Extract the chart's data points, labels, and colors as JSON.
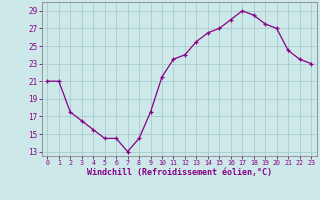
{
  "x": [
    0,
    1,
    2,
    3,
    4,
    5,
    6,
    7,
    8,
    9,
    10,
    11,
    12,
    13,
    14,
    15,
    16,
    17,
    18,
    19,
    20,
    21,
    22,
    23
  ],
  "y": [
    21,
    21,
    17.5,
    16.5,
    15.5,
    14.5,
    14.5,
    13,
    14.5,
    17.5,
    21.5,
    23.5,
    24,
    25.5,
    26.5,
    27,
    28,
    29,
    28.5,
    27.5,
    27,
    24.5,
    23.5,
    23
  ],
  "line_color": "#880088",
  "marker": "+",
  "bg_color": "#cce8e8",
  "grid_color": "#aacccc",
  "tick_label_color": "#880088",
  "xlabel": "Windchill (Refroidissement éolien,°C)",
  "xlabel_color": "#880088",
  "yticks": [
    13,
    15,
    17,
    19,
    21,
    23,
    25,
    27,
    29
  ],
  "xticks": [
    0,
    1,
    2,
    3,
    4,
    5,
    6,
    7,
    8,
    9,
    10,
    11,
    12,
    13,
    14,
    15,
    16,
    17,
    18,
    19,
    20,
    21,
    22,
    23
  ],
  "ylim": [
    12.5,
    30
  ],
  "xlim": [
    -0.5,
    23.5
  ]
}
